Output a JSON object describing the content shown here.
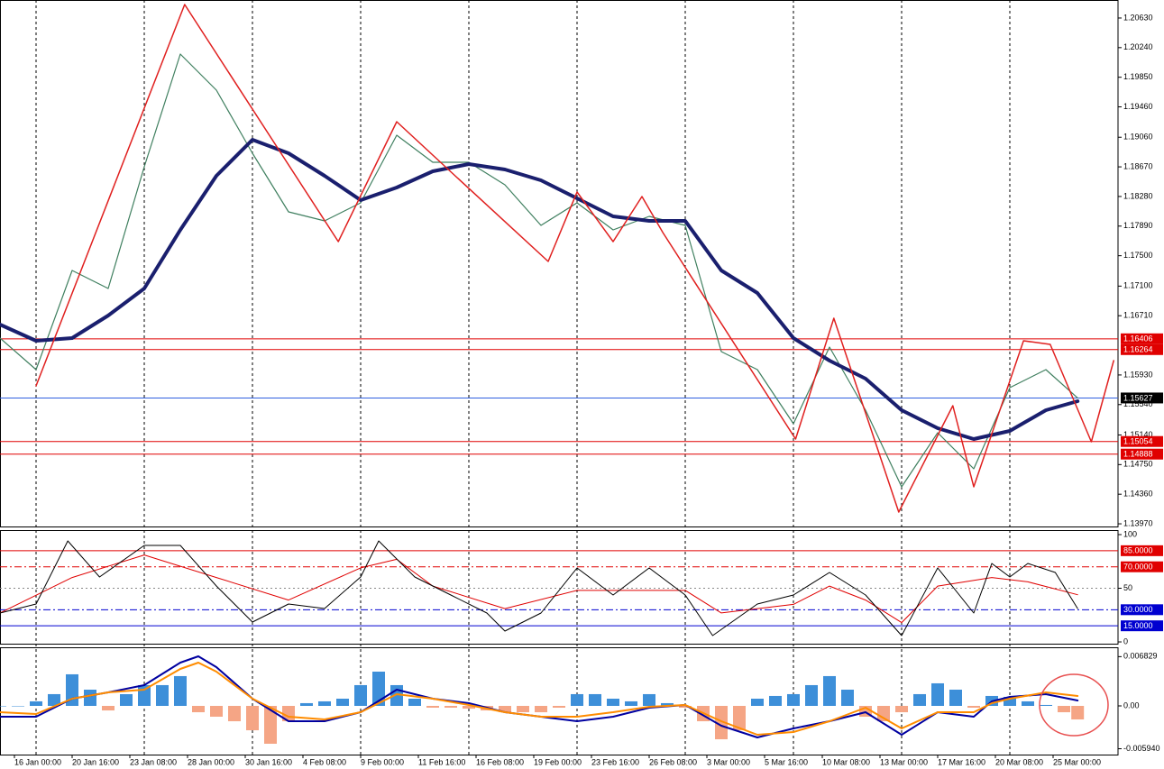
{
  "chart_data": [
    {
      "type": "line",
      "xlim": [
        0,
        155
      ],
      "ylim": [
        1.13923,
        1.20867
      ],
      "yticks": [
        {
          "value": 1.2063,
          "label": "1.20630"
        },
        {
          "value": 1.2024,
          "label": "1.20240"
        },
        {
          "value": 1.1985,
          "label": "1.19850"
        },
        {
          "value": 1.1946,
          "label": "1.19460"
        },
        {
          "value": 1.1906,
          "label": "1.19060"
        },
        {
          "value": 1.1867,
          "label": "1.18670"
        },
        {
          "value": 1.1828,
          "label": "1.18280"
        },
        {
          "value": 1.1789,
          "label": "1.17890"
        },
        {
          "value": 1.175,
          "label": "1.17500"
        },
        {
          "value": 1.171,
          "label": "1.17100"
        },
        {
          "value": 1.1671,
          "label": "1.16710"
        },
        {
          "value": 1.1593,
          "label": "1.15930"
        },
        {
          "value": 1.1554,
          "label": "1.15540"
        },
        {
          "value": 1.1514,
          "label": "1.15140"
        },
        {
          "value": 1.1475,
          "label": "1.14750"
        },
        {
          "value": 1.1436,
          "label": "1.14360"
        },
        {
          "value": 1.1397,
          "label": "1.13970"
        }
      ],
      "levels": [
        {
          "value": 1.16406,
          "color": "#e00000",
          "fill": "#e00000"
        },
        {
          "value": 1.16264,
          "color": "#e00000",
          "fill": "#e00000"
        },
        {
          "value": 1.15627,
          "color": "#2f5fe0",
          "fill": "#000000"
        },
        {
          "value": 1.15054,
          "color": "#e00000",
          "fill": "#e00000"
        },
        {
          "value": 1.14888,
          "color": "#e00000",
          "fill": "#e00000"
        }
      ],
      "series": [
        {
          "color": "#3f7f5f",
          "width": 1.2,
          "x": [
            0,
            5,
            10,
            15,
            20,
            25,
            30,
            35,
            40,
            45,
            50,
            55,
            60,
            65,
            70,
            75,
            80,
            85,
            90,
            95,
            100,
            105,
            110,
            115,
            120,
            125,
            130,
            135,
            140,
            145,
            149.4
          ],
          "values": [
            1.16416,
            1.16,
            1.17306,
            1.17068,
            1.18671,
            1.20155,
            1.1968,
            1.18849,
            1.18078,
            1.17959,
            1.18196,
            1.19087,
            1.1873,
            1.1873,
            1.18434,
            1.179,
            1.18196,
            1.1784,
            1.18018,
            1.179,
            1.16238,
            1.16,
            1.15288,
            1.16297,
            1.15466,
            1.14457,
            1.15169,
            1.14695,
            1.15763,
            1.16,
            1.15627
          ]
        },
        {
          "color": "#1a1f6e",
          "width": 4,
          "x": [
            0,
            5,
            10,
            15,
            20,
            25,
            30,
            35,
            40,
            45,
            50,
            55,
            60,
            65,
            70,
            75,
            80,
            85,
            90,
            95,
            100,
            105,
            110,
            115,
            120,
            125,
            130,
            135,
            140,
            145,
            149.4
          ],
          "values": [
            1.16594,
            1.1638,
            1.16416,
            1.16713,
            1.17069,
            1.1784,
            1.18552,
            1.19027,
            1.18849,
            1.18552,
            1.18232,
            1.18398,
            1.18612,
            1.18707,
            1.18635,
            1.18493,
            1.18256,
            1.18018,
            1.17959,
            1.17959,
            1.17306,
            1.17009,
            1.16416,
            1.16119,
            1.15882,
            1.15466,
            1.15229,
            1.15086,
            1.15193,
            1.15466,
            1.15585
          ]
        },
        {
          "color": "#e0201f",
          "width": 1.5,
          "x": [
            5,
            25.6,
            46.9,
            55,
            63.1,
            76,
            80,
            85,
            89,
            91.9,
            110.3,
            115.6,
            124.6,
            132.1,
            135,
            141.9,
            145.6,
            151.3,
            154.4
          ],
          "values": [
            1.15787,
            1.20808,
            1.17686,
            1.19265,
            1.18552,
            1.17425,
            1.18339,
            1.17686,
            1.18279,
            1.17805,
            1.15086,
            1.16677,
            1.14125,
            1.15526,
            1.14457,
            1.1638,
            1.16333,
            1.15051,
            1.16119
          ]
        }
      ]
    },
    {
      "type": "line",
      "xlim": [
        0,
        155
      ],
      "ylim": [
        -2.5,
        104.2
      ],
      "yticks": [
        100,
        50,
        0
      ],
      "levels": [
        {
          "value": 85,
          "label": "85.0000",
          "color": "#e00000",
          "fill": "#e00000"
        },
        {
          "value": 70,
          "label": "70.0000",
          "color": "#e00000",
          "fill": "#e00000",
          "dash": "8 3 2 3"
        },
        {
          "value": 30,
          "label": "30.0000",
          "color": "#0000d0",
          "fill": "#0000d0",
          "dash": "8 3 2 3"
        },
        {
          "value": 15,
          "label": "15.0000",
          "color": "#0000d0",
          "fill": "#0000d0"
        }
      ],
      "series": [
        {
          "color": "#e00000",
          "width": 1,
          "x": [
            0,
            10,
            20,
            30,
            40,
            50,
            55,
            60,
            70,
            80,
            90,
            95,
            100,
            110,
            115,
            120,
            125,
            130,
            137.5,
            142.5,
            149.4
          ],
          "values": [
            27,
            60,
            81,
            60,
            39,
            69,
            77,
            52,
            31,
            48,
            48,
            48,
            27,
            35,
            52,
            39,
            18,
            52,
            60,
            56,
            44
          ]
        },
        {
          "color": "#000000",
          "width": 1,
          "x": [
            0,
            5,
            9.4,
            13.8,
            20,
            25,
            30,
            35,
            40,
            45,
            50,
            52.5,
            57.5,
            62.5,
            67.5,
            70,
            75,
            80,
            85,
            90,
            95,
            98.8,
            105,
            110,
            115,
            120,
            125,
            130,
            135,
            137.5,
            140,
            142.5,
            146.3,
            149.4
          ],
          "values": [
            26.9,
            35.3,
            94.1,
            60.5,
            89.9,
            89.9,
            52.1,
            18.5,
            35.3,
            31.1,
            60.5,
            94.1,
            60.5,
            43.7,
            26.9,
            10.1,
            26.9,
            68.9,
            43.7,
            68.9,
            43.7,
            5.9,
            35.3,
            43.7,
            64.7,
            43.7,
            5.9,
            68.9,
            26.9,
            73.1,
            60.5,
            73.1,
            64.7,
            31.1
          ]
        }
      ]
    },
    {
      "type": "bar",
      "xlim": [
        0,
        155
      ],
      "ylim": [
        -0.006875,
        0.008125
      ],
      "yticks": [
        0.006829,
        {
          "value": 0,
          "label": "0.00"
        },
        {
          "value": -0.00594,
          "label": "-0.005940"
        }
      ],
      "positive_color": "#3d8fd9",
      "negative_color": "#f5a585",
      "x": [
        0,
        2.5,
        5,
        7.5,
        10,
        12.5,
        15,
        17.5,
        20,
        22.5,
        25,
        27.5,
        30,
        32.5,
        35,
        37.5,
        40,
        42.5,
        45,
        47.5,
        50,
        52.5,
        55,
        57.5,
        60,
        62.5,
        65,
        67.5,
        70,
        72.5,
        75,
        77.5,
        80,
        82.5,
        85,
        87.5,
        90,
        92.5,
        95,
        97.5,
        100,
        102.5,
        105,
        107.5,
        110,
        112.5,
        115,
        117.5,
        120,
        122.5,
        125,
        127.5,
        130,
        132.5,
        135,
        137.5,
        140,
        142.5,
        145,
        147.5,
        149.4
      ],
      "values": [
        0,
        0,
        0.00063,
        0.00163,
        0.00438,
        0.00225,
        -0.00063,
        0.00163,
        0.00288,
        0.00288,
        0.00413,
        -0.00088,
        -0.0015,
        -0.00213,
        -0.00338,
        -0.00525,
        -0.00213,
        0.00038,
        0.00063,
        0.001,
        0.00288,
        0.00475,
        0.00288,
        0.001,
        -0.00025,
        -0.00025,
        -0.00038,
        -0.00063,
        -0.00088,
        -0.00088,
        -0.00088,
        -0.00025,
        0.00163,
        0.00163,
        0.001,
        0.00063,
        0.00163,
        0.00038,
        -0.00025,
        -0.00213,
        -0.00463,
        -0.00338,
        0.001,
        0.00138,
        0.00163,
        0.00288,
        0.00413,
        0.00225,
        -0.0015,
        -0.00213,
        -0.00088,
        0.00163,
        0.00313,
        0.00225,
        -0.00025,
        0.00138,
        0.00125,
        0.00063,
        0.00013,
        -0.00088,
        -0.00188
      ],
      "series": [
        {
          "color": "#0000a0",
          "width": 2,
          "x": [
            0,
            5,
            10,
            15,
            20,
            25,
            27.5,
            30,
            35,
            40,
            45,
            50,
            55,
            60,
            65,
            70,
            75,
            80,
            85,
            90,
            95,
            100,
            105,
            110,
            115,
            120,
            125,
            130,
            135,
            137.5,
            140,
            145,
            149.4
          ],
          "values": [
            -0.0015,
            -0.0015,
            0.001,
            0.00188,
            0.00288,
            0.006,
            0.00688,
            0.00538,
            0.001,
            -0.00213,
            -0.00213,
            -0.00088,
            0.00225,
            0.001,
            0.00038,
            -0.00088,
            -0.0015,
            -0.00213,
            -0.0015,
            -0.00025,
            0.00013,
            -0.00275,
            -0.00438,
            -0.00313,
            -0.00213,
            -0.00088,
            -0.004,
            -0.00088,
            -0.0015,
            0.00063,
            0.00125,
            0.00163,
            0.00075
          ]
        },
        {
          "color": "#ff8c00",
          "width": 2,
          "x": [
            0,
            5,
            10,
            15,
            20,
            25,
            27.5,
            30,
            35,
            40,
            45,
            50,
            55,
            60,
            65,
            70,
            75,
            80,
            85,
            90,
            95,
            100,
            105,
            110,
            115,
            120,
            125,
            130,
            135,
            137.5,
            140,
            145,
            149.4
          ],
          "values": [
            -0.00088,
            -0.00113,
            0.001,
            0.00188,
            0.00225,
            0.00513,
            0.006,
            0.00475,
            0.001,
            -0.0015,
            -0.00188,
            -0.00088,
            0.00163,
            0.001,
            0.00013,
            -0.00088,
            -0.0015,
            -0.0015,
            -0.00088,
            -0.00013,
            0.00013,
            -0.00213,
            -0.004,
            -0.00363,
            -0.00213,
            -0.00025,
            -0.00313,
            -0.00088,
            -0.00088,
            0.00038,
            0.001,
            0.00188,
            0.00138
          ]
        }
      ],
      "xticks": [
        {
          "value": 2,
          "label": "16 Jan 00:00"
        },
        {
          "value": 10,
          "label": "20 Jan 16:00"
        },
        {
          "value": 18,
          "label": "23 Jan 08:00"
        },
        {
          "value": 26,
          "label": "28 Jan 00:00"
        },
        {
          "value": 34,
          "label": "30 Jan 16:00"
        },
        {
          "value": 42,
          "label": "4 Feb 08:00"
        },
        {
          "value": 50,
          "label": "9 Feb 00:00"
        },
        {
          "value": 58,
          "label": "11 Feb 16:00"
        },
        {
          "value": 66,
          "label": "16 Feb 08:00"
        },
        {
          "value": 74,
          "label": "19 Feb 00:00"
        },
        {
          "value": 82,
          "label": "23 Feb 16:00"
        },
        {
          "value": 90,
          "label": "26 Feb 08:00"
        },
        {
          "value": 98,
          "label": "3 Mar 00:00"
        },
        {
          "value": 106,
          "label": "5 Mar 16:00"
        },
        {
          "value": 114,
          "label": "10 Mar 08:00"
        },
        {
          "value": 122,
          "label": "13 Mar 00:00"
        },
        {
          "value": 130,
          "label": "17 Mar 16:00"
        },
        {
          "value": 138,
          "label": "20 Mar 08:00"
        },
        {
          "value": 146,
          "label": "25 Mar 00:00"
        }
      ]
    }
  ]
}
